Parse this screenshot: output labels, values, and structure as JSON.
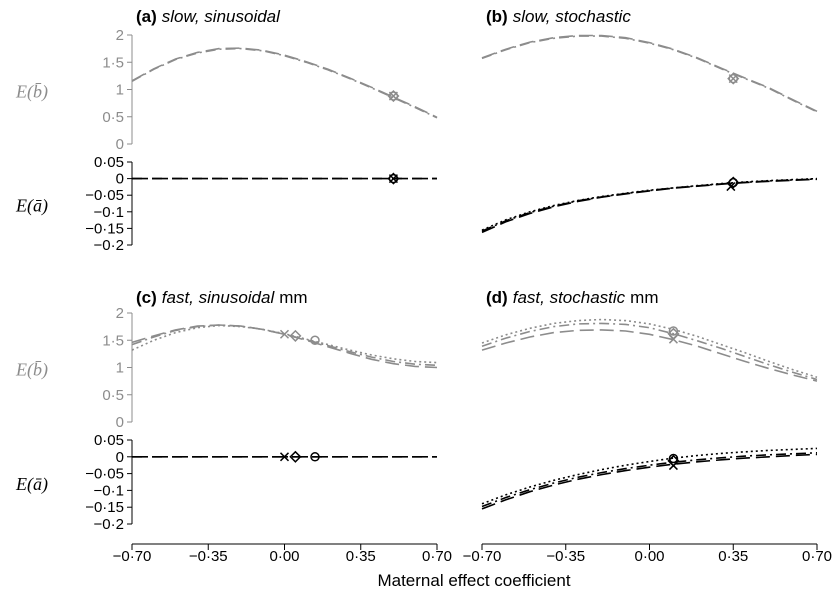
{
  "figure": {
    "xlabel": "Maternal effect coefficient",
    "colors": {
      "b": "#8c8c8c",
      "a": "#000000"
    }
  },
  "chart_data": [
    {
      "type": "line",
      "panel_label": "(a)",
      "title": "slow, sinusoidal",
      "title_suffix": "",
      "xticks": [
        "−0·70",
        "−0·35",
        "0·00",
        "0·35",
        "0·70"
      ],
      "x_range": [
        -0.7,
        0.7
      ],
      "top": {
        "ylabel": "E(b̄)",
        "ylim": [
          0,
          2
        ],
        "yticks": [
          "0",
          "0·5",
          "1",
          "1·5",
          "2"
        ],
        "series": [
          {
            "style": "dashdot",
            "x": [
              -0.7,
              -0.6,
              -0.5,
              -0.4,
              -0.3,
              -0.2,
              -0.1,
              0,
              0.1,
              0.2,
              0.3,
              0.4,
              0.5,
              0.6,
              0.7
            ],
            "y": [
              1.15,
              1.37,
              1.55,
              1.67,
              1.74,
              1.75,
              1.71,
              1.62,
              1.5,
              1.36,
              1.2,
              1.03,
              0.85,
              0.67,
              0.48
            ]
          },
          {
            "style": "dashed",
            "x": [
              -0.7,
              -0.6,
              -0.5,
              -0.4,
              -0.3,
              -0.2,
              -0.1,
              0,
              0.1,
              0.2,
              0.3,
              0.4,
              0.5,
              0.6,
              0.7
            ],
            "y": [
              1.16,
              1.38,
              1.56,
              1.68,
              1.75,
              1.76,
              1.72,
              1.63,
              1.51,
              1.37,
              1.21,
              1.04,
              0.86,
              0.68,
              0.49
            ]
          }
        ],
        "markers": [
          {
            "shape": "circle",
            "x": 0.5,
            "y": 0.88
          },
          {
            "shape": "diamond",
            "x": 0.5,
            "y": 0.88
          },
          {
            "shape": "cross",
            "x": 0.5,
            "y": 0.88
          }
        ]
      },
      "bottom": {
        "ylabel": "E(ā)",
        "ylim": [
          -0.2,
          0.05
        ],
        "yticks": [
          "0·05",
          "0",
          "−0·05",
          "−0·1",
          "−0·15",
          "−0·2"
        ],
        "series": [
          {
            "style": "dashdot",
            "x": [
              -0.7,
              0.7
            ],
            "y": [
              0,
              0
            ]
          },
          {
            "style": "dashed",
            "x": [
              -0.7,
              0.7
            ],
            "y": [
              0,
              0
            ]
          }
        ],
        "markers": [
          {
            "shape": "circle",
            "x": 0.5,
            "y": 0
          },
          {
            "shape": "diamond",
            "x": 0.5,
            "y": 0
          },
          {
            "shape": "cross",
            "x": 0.5,
            "y": 0
          }
        ]
      }
    },
    {
      "type": "line",
      "panel_label": "(b)",
      "title": "slow, stochastic",
      "title_suffix": "",
      "xticks": [],
      "x_range": [
        -0.7,
        0.7
      ],
      "top": {
        "ylabel": "",
        "ylim": [
          0,
          2
        ],
        "yticks": [],
        "series": [
          {
            "style": "dashdot",
            "x": [
              -0.7,
              -0.6,
              -0.5,
              -0.4,
              -0.3,
              -0.2,
              -0.1,
              0,
              0.1,
              0.2,
              0.3,
              0.4,
              0.5,
              0.6,
              0.7
            ],
            "y": [
              1.57,
              1.73,
              1.86,
              1.94,
              1.98,
              1.98,
              1.94,
              1.85,
              1.73,
              1.57,
              1.38,
              1.2,
              1.02,
              0.8,
              0.59
            ]
          },
          {
            "style": "dashed",
            "x": [
              -0.7,
              -0.6,
              -0.5,
              -0.4,
              -0.3,
              -0.2,
              -0.1,
              0,
              0.1,
              0.2,
              0.3,
              0.4,
              0.5,
              0.6,
              0.7
            ],
            "y": [
              1.58,
              1.74,
              1.87,
              1.95,
              1.99,
              1.99,
              1.95,
              1.86,
              1.74,
              1.58,
              1.39,
              1.21,
              1.03,
              0.81,
              0.6
            ]
          }
        ],
        "markers": [
          {
            "shape": "circle",
            "x": 0.35,
            "y": 1.2
          },
          {
            "shape": "diamond",
            "x": 0.35,
            "y": 1.2
          },
          {
            "shape": "cross",
            "x": 0.35,
            "y": 1.2
          }
        ]
      },
      "bottom": {
        "ylabel": "",
        "ylim": [
          -0.2,
          0.05
        ],
        "yticks": [],
        "series": [
          {
            "style": "dashed",
            "x": [
              -0.7,
              -0.6,
              -0.5,
              -0.4,
              -0.3,
              -0.2,
              -0.1,
              0,
              0.1,
              0.2,
              0.3,
              0.4,
              0.5,
              0.6,
              0.7
            ],
            "y": [
              -0.162,
              -0.13,
              -0.105,
              -0.085,
              -0.069,
              -0.056,
              -0.046,
              -0.037,
              -0.029,
              -0.023,
              -0.017,
              -0.012,
              -0.008,
              -0.005,
              -0.002
            ]
          },
          {
            "style": "dotted",
            "x": [
              -0.7,
              -0.6,
              -0.5,
              -0.4,
              -0.3,
              -0.2,
              -0.1,
              0,
              0.1,
              0.2,
              0.3,
              0.4,
              0.5,
              0.6,
              0.7
            ],
            "y": [
              -0.155,
              -0.124,
              -0.1,
              -0.081,
              -0.066,
              -0.054,
              -0.044,
              -0.035,
              -0.028,
              -0.021,
              -0.015,
              -0.01,
              -0.006,
              -0.003,
              0
            ]
          },
          {
            "style": "dashdot",
            "x": [
              -0.7,
              -0.6,
              -0.5,
              -0.4,
              -0.3,
              -0.2,
              -0.1,
              0,
              0.1,
              0.2,
              0.3,
              0.4,
              0.5,
              0.6,
              0.7
            ],
            "y": [
              -0.158,
              -0.127,
              -0.102,
              -0.083,
              -0.067,
              -0.055,
              -0.045,
              -0.036,
              -0.028,
              -0.022,
              -0.016,
              -0.011,
              -0.007,
              -0.004,
              -0.001
            ]
          }
        ],
        "markers": [
          {
            "shape": "circle",
            "x": 0.35,
            "y": -0.012
          },
          {
            "shape": "diamond",
            "x": 0.35,
            "y": -0.012
          },
          {
            "shape": "cross",
            "x": 0.34,
            "y": -0.024
          }
        ]
      }
    },
    {
      "type": "line",
      "panel_label": "(c)",
      "title": "fast, sinusoidal",
      "title_suffix": "mm",
      "xticks": [
        "−0·70",
        "−0·35",
        "0·00",
        "0·35",
        "0·70"
      ],
      "x_range": [
        -0.7,
        0.7
      ],
      "top": {
        "ylabel": "E(b̄)",
        "ylim": [
          0,
          2
        ],
        "yticks": [
          "0",
          "0·5",
          "1",
          "1·5",
          "2"
        ],
        "series": [
          {
            "style": "dotted",
            "x": [
              -0.7,
              -0.6,
              -0.5,
              -0.4,
              -0.3,
              -0.2,
              -0.1,
              0,
              0.1,
              0.2,
              0.3,
              0.4,
              0.5,
              0.6,
              0.7
            ],
            "y": [
              1.32,
              1.5,
              1.64,
              1.73,
              1.77,
              1.75,
              1.7,
              1.62,
              1.52,
              1.42,
              1.32,
              1.23,
              1.16,
              1.11,
              1.09
            ]
          },
          {
            "style": "dashed",
            "x": [
              -0.7,
              -0.6,
              -0.5,
              -0.4,
              -0.3,
              -0.2,
              -0.1,
              0,
              0.1,
              0.2,
              0.3,
              0.4,
              0.5,
              0.6,
              0.7
            ],
            "y": [
              1.46,
              1.58,
              1.69,
              1.76,
              1.78,
              1.76,
              1.7,
              1.61,
              1.5,
              1.38,
              1.26,
              1.15,
              1.07,
              1.02,
              1.0
            ]
          },
          {
            "style": "dashdot",
            "x": [
              -0.7,
              -0.6,
              -0.5,
              -0.4,
              -0.3,
              -0.2,
              -0.1,
              0,
              0.1,
              0.2,
              0.3,
              0.4,
              0.5,
              0.6,
              0.7
            ],
            "y": [
              1.42,
              1.56,
              1.68,
              1.75,
              1.78,
              1.76,
              1.7,
              1.61,
              1.51,
              1.4,
              1.29,
              1.19,
              1.11,
              1.06,
              1.04
            ]
          }
        ],
        "markers": [
          {
            "shape": "cross",
            "x": 0.0,
            "y": 1.61
          },
          {
            "shape": "diamond",
            "x": 0.05,
            "y": 1.58
          },
          {
            "shape": "circle",
            "x": 0.14,
            "y": 1.5
          }
        ]
      },
      "bottom": {
        "ylabel": "E(ā)",
        "ylim": [
          -0.2,
          0.05
        ],
        "yticks": [
          "0·05",
          "0",
          "−0·05",
          "−0·1",
          "−0·15",
          "−0·2"
        ],
        "series": [
          {
            "style": "dashdot",
            "x": [
              -0.7,
              0.7
            ],
            "y": [
              0,
              0
            ]
          },
          {
            "style": "dashed",
            "x": [
              -0.7,
              0.7
            ],
            "y": [
              0,
              0
            ]
          }
        ],
        "markers": [
          {
            "shape": "cross",
            "x": 0.0,
            "y": 0
          },
          {
            "shape": "diamond",
            "x": 0.05,
            "y": 0
          },
          {
            "shape": "circle",
            "x": 0.14,
            "y": 0
          }
        ]
      }
    },
    {
      "type": "line",
      "panel_label": "(d)",
      "title": "fast, stochastic",
      "title_suffix": "mm",
      "xticks": [
        "−0·70",
        "−0·35",
        "0·00",
        "0·35",
        "0·70"
      ],
      "x_range": [
        -0.7,
        0.7
      ],
      "top": {
        "ylabel": "",
        "ylim": [
          0,
          2
        ],
        "yticks": [],
        "series": [
          {
            "style": "dotted",
            "x": [
              -0.7,
              -0.6,
              -0.5,
              -0.4,
              -0.3,
              -0.2,
              -0.1,
              0,
              0.1,
              0.2,
              0.3,
              0.4,
              0.5,
              0.6,
              0.7
            ],
            "y": [
              1.45,
              1.6,
              1.72,
              1.81,
              1.86,
              1.88,
              1.86,
              1.8,
              1.7,
              1.57,
              1.42,
              1.27,
              1.11,
              0.96,
              0.82
            ]
          },
          {
            "style": "dashdot",
            "x": [
              -0.7,
              -0.6,
              -0.5,
              -0.4,
              -0.3,
              -0.2,
              -0.1,
              0,
              0.1,
              0.2,
              0.3,
              0.4,
              0.5,
              0.6,
              0.7
            ],
            "y": [
              1.39,
              1.54,
              1.66,
              1.75,
              1.8,
              1.81,
              1.79,
              1.73,
              1.62,
              1.49,
              1.35,
              1.2,
              1.05,
              0.91,
              0.78
            ]
          },
          {
            "style": "dashed",
            "x": [
              -0.7,
              -0.6,
              -0.5,
              -0.4,
              -0.3,
              -0.2,
              -0.1,
              0,
              0.1,
              0.2,
              0.3,
              0.4,
              0.5,
              0.6,
              0.7
            ],
            "y": [
              1.32,
              1.45,
              1.56,
              1.64,
              1.68,
              1.69,
              1.67,
              1.61,
              1.51,
              1.39,
              1.25,
              1.11,
              0.98,
              0.86,
              0.75
            ]
          }
        ],
        "markers": [
          {
            "shape": "circle",
            "x": 0.1,
            "y": 1.67
          },
          {
            "shape": "diamond",
            "x": 0.1,
            "y": 1.62
          },
          {
            "shape": "cross",
            "x": 0.1,
            "y": 1.52
          }
        ]
      },
      "bottom": {
        "ylabel": "",
        "ylim": [
          -0.2,
          0.05
        ],
        "yticks": [],
        "series": [
          {
            "style": "dotted",
            "x": [
              -0.7,
              -0.6,
              -0.5,
              -0.4,
              -0.3,
              -0.2,
              -0.1,
              0,
              0.1,
              0.2,
              0.3,
              0.4,
              0.5,
              0.6,
              0.7
            ],
            "y": [
              -0.14,
              -0.113,
              -0.09,
              -0.07,
              -0.053,
              -0.038,
              -0.025,
              -0.014,
              -0.004,
              0.004,
              0.01,
              0.015,
              0.019,
              0.022,
              0.025
            ]
          },
          {
            "style": "dashdot",
            "x": [
              -0.7,
              -0.6,
              -0.5,
              -0.4,
              -0.3,
              -0.2,
              -0.1,
              0,
              0.1,
              0.2,
              0.3,
              0.4,
              0.5,
              0.6,
              0.7
            ],
            "y": [
              -0.148,
              -0.121,
              -0.098,
              -0.078,
              -0.061,
              -0.047,
              -0.035,
              -0.025,
              -0.016,
              -0.009,
              -0.003,
              0.002,
              0.006,
              0.009,
              0.012
            ]
          },
          {
            "style": "dashed",
            "x": [
              -0.7,
              -0.6,
              -0.5,
              -0.4,
              -0.3,
              -0.2,
              -0.1,
              0,
              0.1,
              0.2,
              0.3,
              0.4,
              0.5,
              0.6,
              0.7
            ],
            "y": [
              -0.155,
              -0.128,
              -0.104,
              -0.084,
              -0.067,
              -0.053,
              -0.041,
              -0.031,
              -0.022,
              -0.015,
              -0.009,
              -0.004,
              0.0,
              0.004,
              0.007
            ]
          }
        ],
        "markers": [
          {
            "shape": "circle",
            "x": 0.1,
            "y": -0.005
          },
          {
            "shape": "diamond",
            "x": 0.1,
            "y": -0.012
          },
          {
            "shape": "cross",
            "x": 0.1,
            "y": -0.026
          }
        ]
      }
    }
  ]
}
